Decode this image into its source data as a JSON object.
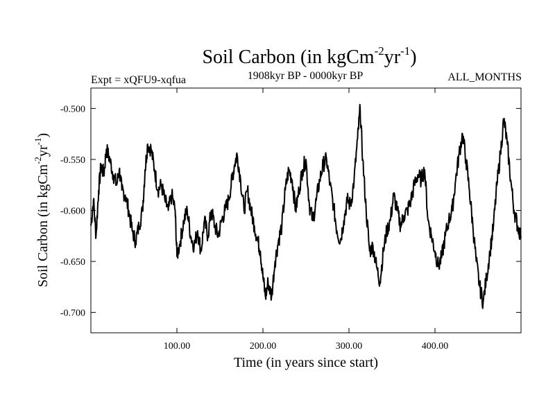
{
  "chart_data": {
    "type": "line",
    "title": {
      "base": "Soil Carbon (in kgCm",
      "sup1": "-2",
      "mid": "yr",
      "sup2": "-1",
      "end": ")"
    },
    "subtitle_left": "Expt = xQFU9-xqfua",
    "subtitle_center": "1908kyr BP - 0000kyr BP",
    "subtitle_right": "ALL_MONTHS",
    "xlabel": "Time (in years since start)",
    "ylabel": {
      "base": "Soil Carbon (in kgCm",
      "sup1": "-2",
      "mid": "yr",
      "sup2": "-1",
      "end": ")"
    },
    "xlim": [
      0,
      500
    ],
    "ylim": [
      -0.72,
      -0.48
    ],
    "xticks": [
      100,
      200,
      300,
      400
    ],
    "xtick_labels": [
      "100.00",
      "200.00",
      "300.00",
      "400.00"
    ],
    "yticks": [
      -0.5,
      -0.55,
      -0.6,
      -0.65,
      -0.7
    ],
    "ytick_labels": [
      "-0.500",
      "-0.550",
      "-0.600",
      "-0.650",
      "-0.700"
    ],
    "line_color": "#000000",
    "series": [
      {
        "name": "Soil Carbon",
        "x": [
          0,
          3,
          6,
          9,
          12,
          15,
          18,
          22,
          26,
          30,
          33,
          36,
          40,
          44,
          48,
          52,
          56,
          60,
          63,
          66,
          70,
          74,
          78,
          82,
          86,
          90,
          94,
          98,
          100,
          104,
          108,
          112,
          116,
          120,
          124,
          128,
          132,
          136,
          140,
          144,
          148,
          152,
          156,
          160,
          164,
          167,
          170,
          174,
          178,
          182,
          186,
          190,
          194,
          197,
          200,
          203,
          206,
          210,
          214,
          218,
          222,
          226,
          230,
          234,
          238,
          242,
          246,
          250,
          254,
          258,
          262,
          266,
          270,
          274,
          278,
          282,
          286,
          290,
          294,
          298,
          302,
          306,
          310,
          313,
          316,
          320,
          324,
          328,
          332,
          336,
          340,
          344,
          348,
          352,
          356,
          360,
          364,
          368,
          372,
          376,
          380,
          384,
          388,
          392,
          396,
          400,
          404,
          408,
          412,
          416,
          420,
          424,
          428,
          432,
          436,
          440,
          444,
          448,
          452,
          456,
          460,
          464,
          468,
          472,
          476,
          480,
          484,
          488,
          492,
          496,
          500
        ],
        "y": [
          -0.615,
          -0.59,
          -0.625,
          -0.58,
          -0.555,
          -0.565,
          -0.54,
          -0.55,
          -0.565,
          -0.575,
          -0.56,
          -0.58,
          -0.585,
          -0.6,
          -0.62,
          -0.63,
          -0.615,
          -0.6,
          -0.56,
          -0.535,
          -0.54,
          -0.56,
          -0.58,
          -0.575,
          -0.59,
          -0.6,
          -0.585,
          -0.6,
          -0.645,
          -0.63,
          -0.61,
          -0.6,
          -0.625,
          -0.635,
          -0.62,
          -0.64,
          -0.61,
          -0.625,
          -0.6,
          -0.615,
          -0.625,
          -0.61,
          -0.6,
          -0.59,
          -0.57,
          -0.555,
          -0.545,
          -0.57,
          -0.6,
          -0.58,
          -0.6,
          -0.615,
          -0.63,
          -0.64,
          -0.665,
          -0.685,
          -0.67,
          -0.685,
          -0.65,
          -0.63,
          -0.615,
          -0.58,
          -0.56,
          -0.57,
          -0.6,
          -0.58,
          -0.56,
          -0.55,
          -0.595,
          -0.61,
          -0.59,
          -0.57,
          -0.555,
          -0.55,
          -0.575,
          -0.595,
          -0.62,
          -0.63,
          -0.61,
          -0.59,
          -0.595,
          -0.57,
          -0.53,
          -0.5,
          -0.55,
          -0.6,
          -0.64,
          -0.635,
          -0.655,
          -0.67,
          -0.64,
          -0.62,
          -0.61,
          -0.585,
          -0.6,
          -0.615,
          -0.605,
          -0.6,
          -0.59,
          -0.575,
          -0.565,
          -0.57,
          -0.56,
          -0.61,
          -0.625,
          -0.64,
          -0.655,
          -0.645,
          -0.625,
          -0.61,
          -0.6,
          -0.57,
          -0.545,
          -0.525,
          -0.55,
          -0.58,
          -0.615,
          -0.65,
          -0.675,
          -0.69,
          -0.665,
          -0.64,
          -0.615,
          -0.575,
          -0.545,
          -0.51,
          -0.535,
          -0.57,
          -0.6,
          -0.615,
          -0.625
        ]
      }
    ]
  }
}
